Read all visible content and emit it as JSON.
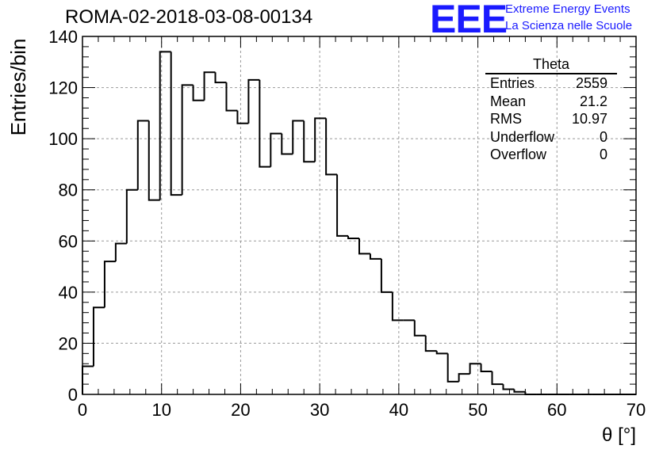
{
  "header": {
    "title": "ROMA-02-2018-03-08-00134",
    "logo_text": "EEE",
    "logo_line1": "Extreme Energy Events",
    "logo_line2": "La Scienza nelle Scuole"
  },
  "stats_box": {
    "title": "Theta",
    "rows": [
      {
        "label": "Entries",
        "value": "2559"
      },
      {
        "label": "Mean",
        "value": "21.2"
      },
      {
        "label": "RMS",
        "value": "10.97"
      },
      {
        "label": "Underflow",
        "value": "0"
      },
      {
        "label": "Overflow",
        "value": "0"
      }
    ]
  },
  "colors": {
    "logo": "#1a1aff",
    "histogram": "#000000",
    "grid": "#999999"
  },
  "chart_data": {
    "type": "bar",
    "style": "step-histogram",
    "title": "ROMA-02-2018-03-08-00134",
    "xlabel": "θ [°]",
    "ylabel": "Entries/bin",
    "xlim": [
      0,
      70
    ],
    "ylim": [
      0,
      140
    ],
    "xticks": [
      0,
      10,
      20,
      30,
      40,
      50,
      60,
      70
    ],
    "yticks": [
      0,
      20,
      40,
      60,
      80,
      100,
      120,
      140
    ],
    "grid": true,
    "bin_width": 1.4,
    "bin_edges_start": 0,
    "values": [
      11,
      34,
      52,
      59,
      80,
      107,
      76,
      134,
      78,
      121,
      115,
      126,
      122,
      111,
      106,
      123,
      89,
      102,
      94,
      107,
      91,
      108,
      86,
      62,
      61,
      55,
      53,
      40,
      29,
      29,
      23,
      17,
      16,
      5,
      8,
      12,
      9,
      4,
      2,
      1,
      0,
      0,
      0,
      0,
      0,
      0,
      0,
      0,
      0,
      0
    ]
  }
}
